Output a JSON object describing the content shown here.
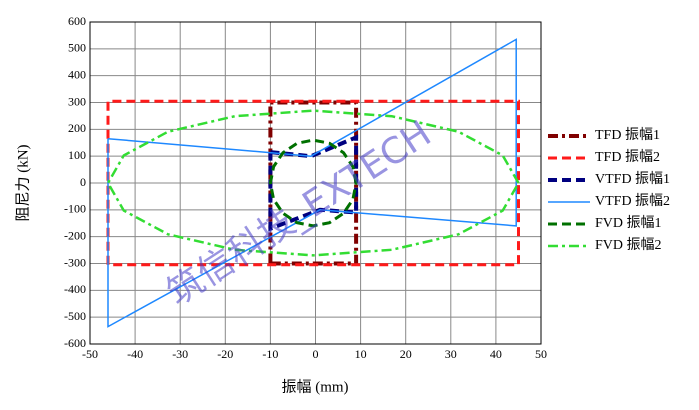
{
  "chart_data": {
    "type": "line",
    "xlabel": "振幅 (mm)",
    "ylabel": "阻尼力 (kN)",
    "watermark": "筑信科技_EXTECH",
    "xlim": [
      -50,
      50
    ],
    "xticks": [
      -50,
      -40,
      -30,
      -20,
      -10,
      0,
      10,
      20,
      30,
      40,
      50
    ],
    "ylim": [
      -600,
      600
    ],
    "yticks": [
      -600,
      -500,
      -400,
      -300,
      -200,
      -100,
      0,
      100,
      200,
      300,
      400,
      500,
      600
    ],
    "grid": true,
    "legend": "right",
    "series": [
      {
        "name": "TFD 振幅1",
        "color": "#800000",
        "line_style": "dashdot",
        "x": [
          -10,
          -10,
          9,
          9,
          -10
        ],
        "values": [
          -300,
          300,
          300,
          -300,
          -300
        ]
      },
      {
        "name": "TFD 振幅2",
        "color": "#ff1a1a",
        "line_style": "dash",
        "x": [
          -46,
          -46,
          45,
          45,
          -46
        ],
        "values": [
          -305,
          305,
          305,
          -305,
          -305
        ]
      },
      {
        "name": "VTFD 振幅1",
        "color": "#000080",
        "line_style": "dash",
        "x": [
          -10,
          -1,
          9,
          9,
          1,
          -10,
          -10
        ],
        "values": [
          115,
          100,
          170,
          -110,
          -100,
          -170,
          115
        ]
      },
      {
        "name": "VTFD 振幅2",
        "color": "#1e88ff",
        "line_style": "solid",
        "x": [
          -46,
          -1,
          44.5,
          44.5,
          1,
          -46,
          -46
        ],
        "values": [
          165,
          100,
          535,
          -160,
          -100,
          -535,
          165
        ]
      },
      {
        "name": "FVD 振幅1",
        "color": "#007000",
        "line_style": "dash",
        "x": [
          9,
          8.3,
          6.2,
          3.1,
          -0.5,
          -4.1,
          -7.2,
          -9.3,
          -10,
          -9.3,
          -7.2,
          -4.1,
          -0.5,
          3.1,
          6.2,
          8.3,
          9
        ],
        "values": [
          0,
          61,
          113,
          148,
          160,
          148,
          113,
          61,
          0,
          -61,
          -113,
          -148,
          -160,
          -148,
          -113,
          -61,
          0
        ]
      },
      {
        "name": "FVD 振幅2",
        "color": "#33dd33",
        "line_style": "dashdot",
        "x": [
          45,
          41.5,
          31.7,
          16.9,
          -0.5,
          -17.9,
          -32.7,
          -42.5,
          -46,
          -42.5,
          -32.7,
          -17.9,
          -0.5,
          16.9,
          31.7,
          41.5,
          45
        ],
        "values": [
          0,
          103,
          191,
          249,
          270,
          249,
          191,
          103,
          0,
          -103,
          -191,
          -249,
          -270,
          -249,
          -191,
          -103,
          0
        ]
      }
    ]
  }
}
